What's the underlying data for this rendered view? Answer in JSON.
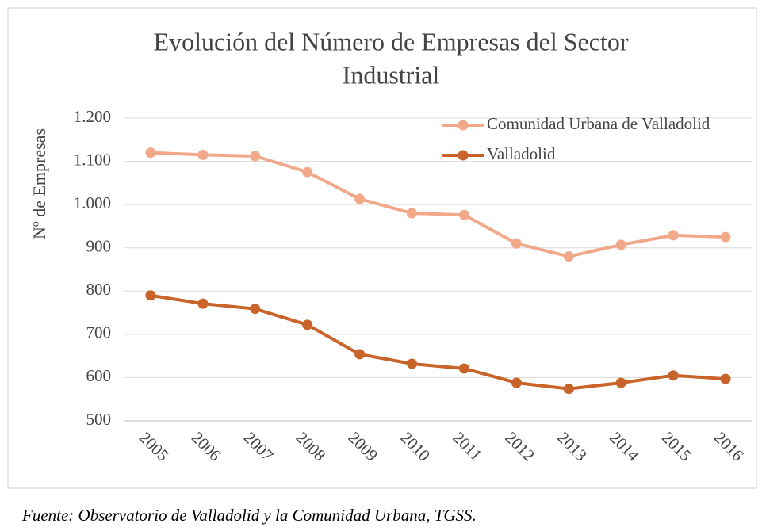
{
  "chart_data": {
    "type": "line",
    "title": [
      "Evolución del Número de Empresas del Sector",
      "Industrial"
    ],
    "y_label": "Nº de Empresas",
    "source": "Fuente: Observatorio de Valladolid y la Comunidad Urbana, TGSS.",
    "categories": [
      "2005",
      "2006",
      "2007",
      "2008",
      "2009",
      "2010",
      "2011",
      "2012",
      "2013",
      "2014",
      "2015",
      "2016"
    ],
    "series": [
      {
        "name": "Comunidad Urbana de Valladolid",
        "color": "#f2a98a",
        "values": [
          1120,
          1115,
          1112,
          1075,
          1013,
          980,
          976,
          910,
          880,
          907,
          929,
          925
        ]
      },
      {
        "name": "Valladolid",
        "color": "#c8642a",
        "values": [
          790,
          771,
          759,
          722,
          654,
          632,
          621,
          588,
          574,
          588,
          605,
          597
        ]
      }
    ],
    "ylim": [
      500,
      1200
    ],
    "yticks": [
      500,
      600,
      700,
      800,
      900,
      {
        "value": 1000,
        "label": "1.000"
      },
      {
        "value": 1100,
        "label": "1.100"
      },
      {
        "value": 1200,
        "label": "1.200"
      }
    ],
    "grid": true,
    "legend": "top-right"
  }
}
